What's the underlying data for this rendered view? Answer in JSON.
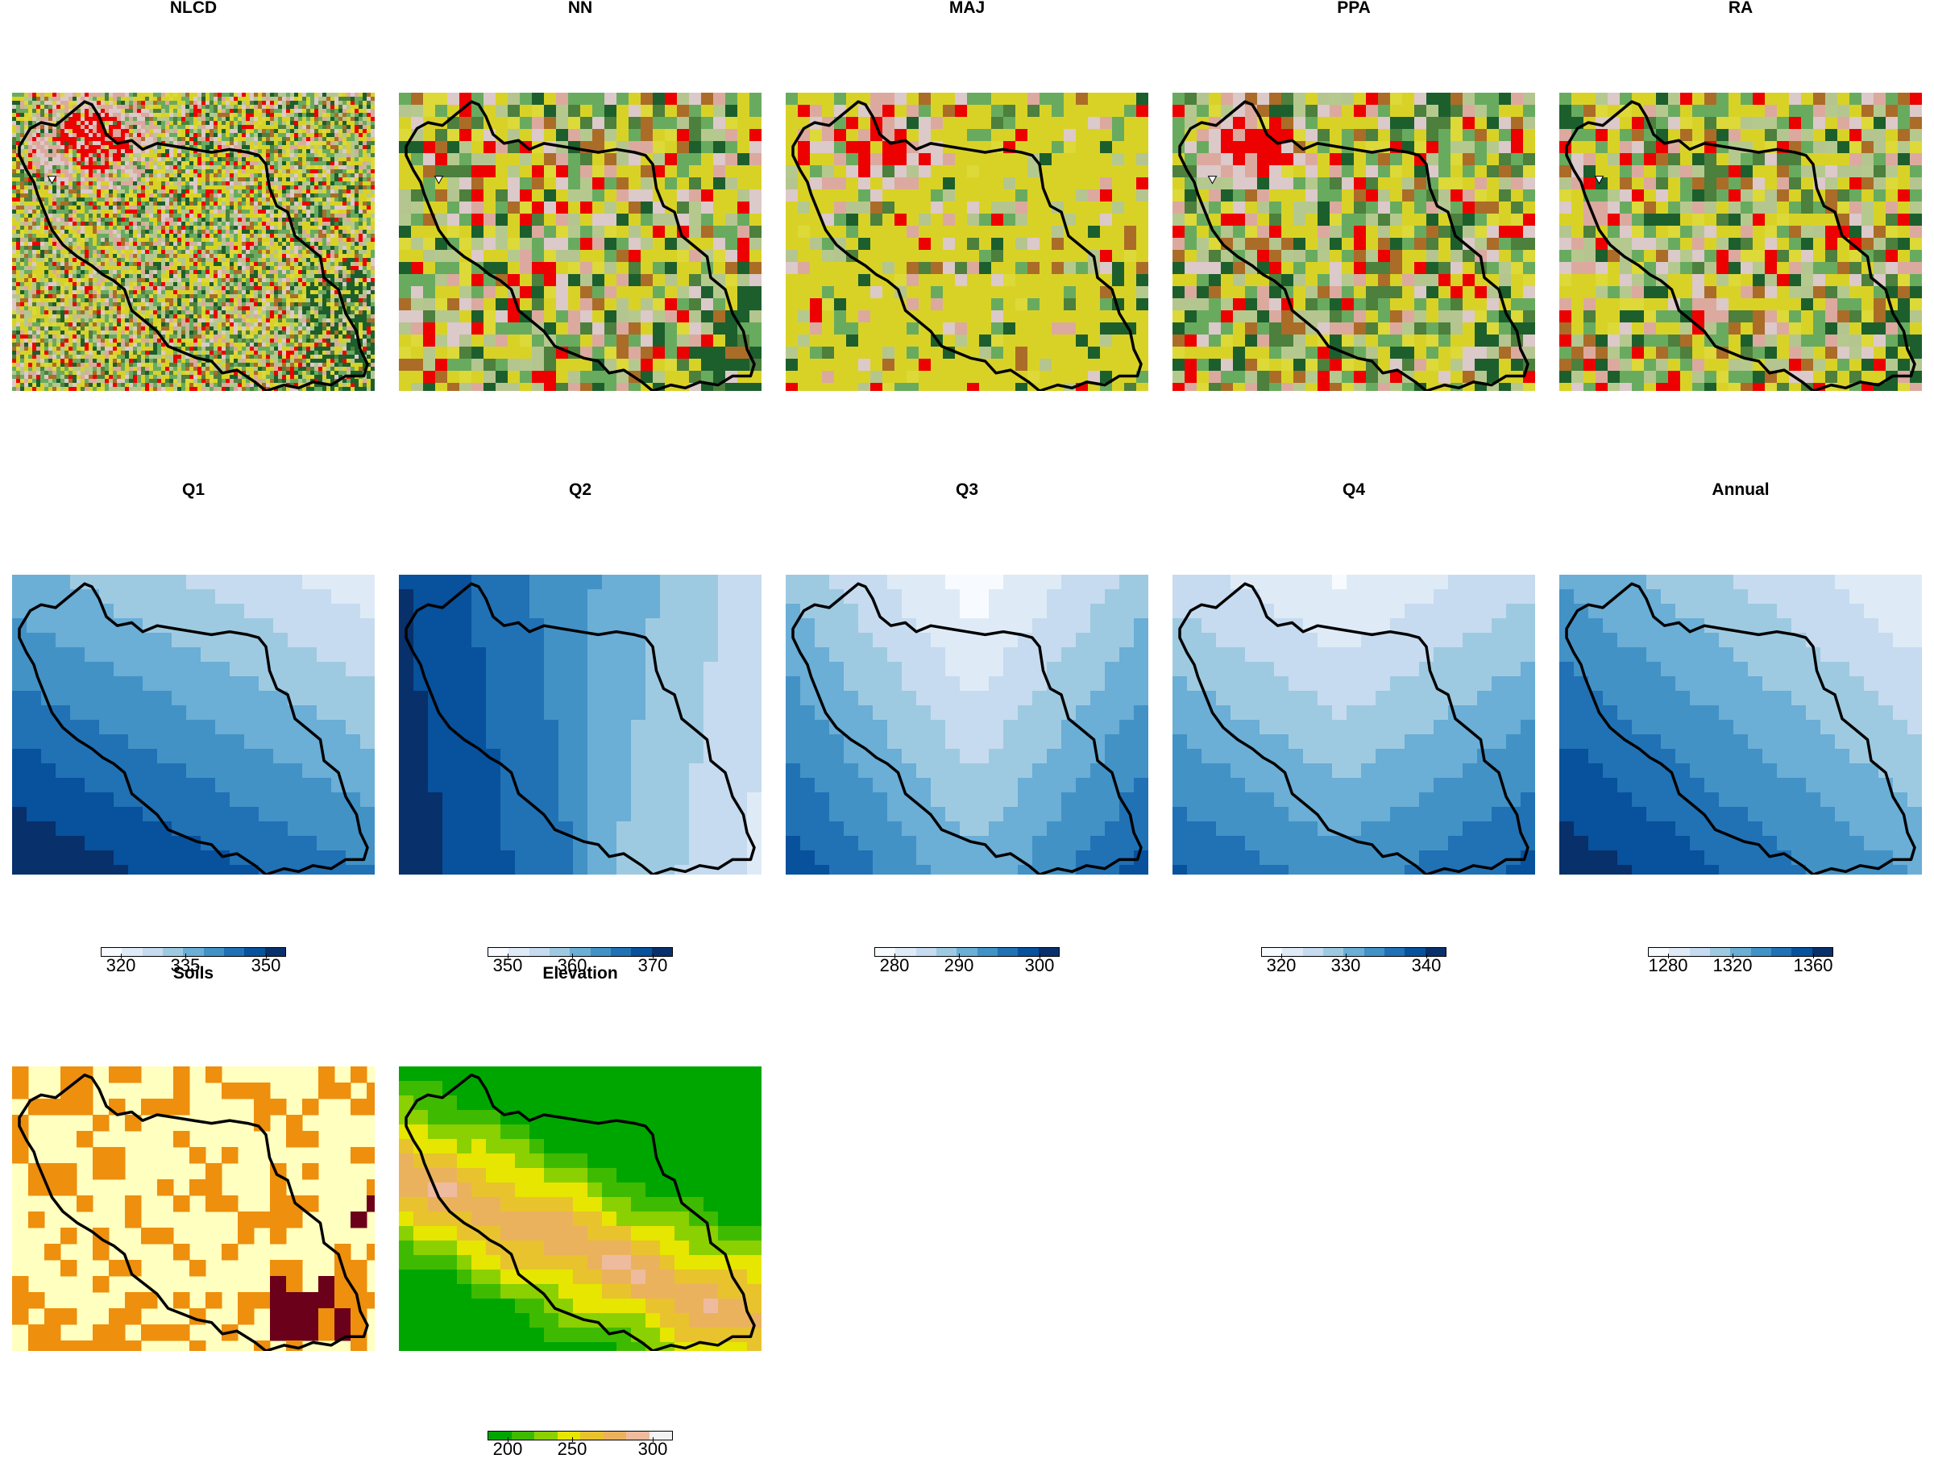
{
  "panels": [
    {
      "title": "NLCD",
      "type": "landcover",
      "seed": 11,
      "cell": 5,
      "region": "nlcd"
    },
    {
      "title": "NN",
      "type": "landcover",
      "seed": 23,
      "cell": 15,
      "region": "mixed"
    },
    {
      "title": "MAJ",
      "type": "landcover",
      "seed": 37,
      "cell": 15,
      "region": "maj"
    },
    {
      "title": "PPA",
      "type": "landcover",
      "seed": 41,
      "cell": 15,
      "region": "ppa"
    },
    {
      "title": "RA",
      "type": "landcover",
      "seed": 53,
      "cell": 15,
      "region": "mixed"
    },
    {
      "title": "Q1",
      "type": "precip",
      "variant": "q1"
    },
    {
      "title": "Q2",
      "type": "precip",
      "variant": "q2"
    },
    {
      "title": "Q3",
      "type": "precip",
      "variant": "q3"
    },
    {
      "title": "Q4",
      "type": "precip",
      "variant": "q4"
    },
    {
      "title": "Annual",
      "type": "precip",
      "variant": "annual"
    },
    {
      "title": "Soils",
      "type": "soils",
      "seed": 67,
      "cell": 20
    },
    {
      "title": "Elevation",
      "type": "elevation",
      "cell": 18
    }
  ],
  "legends": [
    {
      "panel": "Q1",
      "ticks": [
        "320",
        "335",
        "350"
      ]
    },
    {
      "panel": "Q2",
      "ticks": [
        "350",
        "360",
        "370"
      ]
    },
    {
      "panel": "Q3",
      "ticks": [
        "280",
        "290",
        "300"
      ]
    },
    {
      "panel": "Q4",
      "ticks": [
        "320",
        "330",
        "340"
      ]
    },
    {
      "panel": "Annual",
      "ticks": [
        "1280",
        "1320",
        "1360"
      ]
    },
    {
      "panel": "Elevation",
      "ticks": [
        "200",
        "250",
        "300"
      ]
    }
  ],
  "colors": {
    "landcover": [
      "#d9d226",
      "#d9d226",
      "#d9d226",
      "#68ab5f",
      "#68ab5f",
      "#ab6c28",
      "#1c5f2c",
      "#dcd939",
      "#b5c98e",
      "#dcc9c9",
      "#dca99f",
      "#ed0000",
      "#b5c58f",
      "#4d7f3d"
    ],
    "blues": [
      "#f7fbff",
      "#deebf7",
      "#c6dbef",
      "#9ecae1",
      "#6baed6",
      "#4292c6",
      "#2171b5",
      "#08519c",
      "#08306b"
    ],
    "soils": [
      "#ffffc0",
      "#ee8f0d",
      "#6b001a"
    ],
    "terrain": [
      "#00a600",
      "#3ebb00",
      "#8bd000",
      "#e6e600",
      "#e8c32e",
      "#ebb25e",
      "#eebb9e",
      "#f2f2f2"
    ],
    "outline": "#000000"
  }
}
